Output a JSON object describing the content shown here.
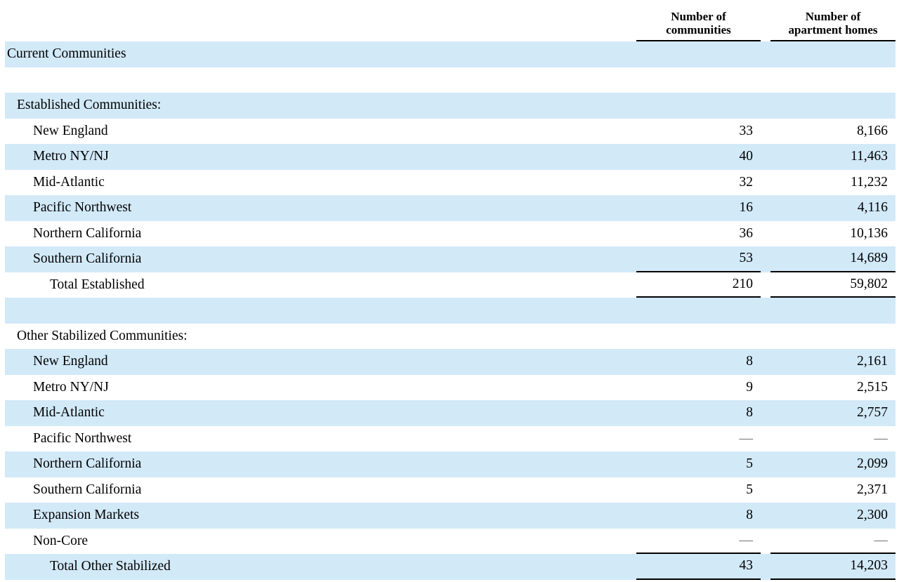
{
  "table": {
    "columns": [
      {
        "line1": "Number of",
        "line2": "communities"
      },
      {
        "line1": "Number of",
        "line2": "apartment homes"
      }
    ],
    "rows": [
      {
        "label": "Current Communities",
        "indent": 0,
        "shaded": true,
        "communities": "",
        "homes": "",
        "rule_below": false
      },
      {
        "label": "",
        "indent": 0,
        "shaded": false,
        "communities": "",
        "homes": "",
        "rule_below": false
      },
      {
        "label": "Established Communities:",
        "indent": 1,
        "shaded": true,
        "communities": "",
        "homes": "",
        "rule_below": false
      },
      {
        "label": "New England",
        "indent": 2,
        "shaded": false,
        "communities": "33",
        "homes": "8,166",
        "rule_below": false
      },
      {
        "label": "Metro NY/NJ",
        "indent": 2,
        "shaded": true,
        "communities": "40",
        "homes": "11,463",
        "rule_below": false
      },
      {
        "label": "Mid-Atlantic",
        "indent": 2,
        "shaded": false,
        "communities": "32",
        "homes": "11,232",
        "rule_below": false
      },
      {
        "label": "Pacific Northwest",
        "indent": 2,
        "shaded": true,
        "communities": "16",
        "homes": "4,116",
        "rule_below": false
      },
      {
        "label": "Northern California",
        "indent": 2,
        "shaded": false,
        "communities": "36",
        "homes": "10,136",
        "rule_below": false
      },
      {
        "label": "Southern California",
        "indent": 2,
        "shaded": true,
        "communities": "53",
        "homes": "14,689",
        "rule_below": true
      },
      {
        "label": "Total Established",
        "indent": 3,
        "shaded": false,
        "communities": "210",
        "homes": "59,802",
        "rule_below": true
      },
      {
        "label": "",
        "indent": 0,
        "shaded": true,
        "communities": "",
        "homes": "",
        "rule_below": false
      },
      {
        "label": "Other Stabilized Communities:",
        "indent": 1,
        "shaded": false,
        "communities": "",
        "homes": "",
        "rule_below": false
      },
      {
        "label": "New England",
        "indent": 2,
        "shaded": true,
        "communities": "8",
        "homes": "2,161",
        "rule_below": false
      },
      {
        "label": "Metro NY/NJ",
        "indent": 2,
        "shaded": false,
        "communities": "9",
        "homes": "2,515",
        "rule_below": false
      },
      {
        "label": "Mid-Atlantic",
        "indent": 2,
        "shaded": true,
        "communities": "8",
        "homes": "2,757",
        "rule_below": false
      },
      {
        "label": "Pacific Northwest",
        "indent": 2,
        "shaded": false,
        "communities": "—",
        "homes": "—",
        "rule_below": false
      },
      {
        "label": "Northern California",
        "indent": 2,
        "shaded": true,
        "communities": "5",
        "homes": "2,099",
        "rule_below": false
      },
      {
        "label": "Southern California",
        "indent": 2,
        "shaded": false,
        "communities": "5",
        "homes": "2,371",
        "rule_below": false
      },
      {
        "label": "Expansion Markets",
        "indent": 2,
        "shaded": true,
        "communities": "8",
        "homes": "2,300",
        "rule_below": false
      },
      {
        "label": "Non-Core",
        "indent": 2,
        "shaded": false,
        "communities": "—",
        "homes": "—",
        "rule_below": true
      },
      {
        "label": "Total Other Stabilized",
        "indent": 3,
        "shaded": true,
        "communities": "43",
        "homes": "14,203",
        "rule_below": true
      }
    ],
    "dash_char": "—",
    "colors": {
      "row_shade": "#d2e9f8",
      "rule": "#000000",
      "dash_text": "#6e6e6e",
      "text": "#000000"
    }
  }
}
